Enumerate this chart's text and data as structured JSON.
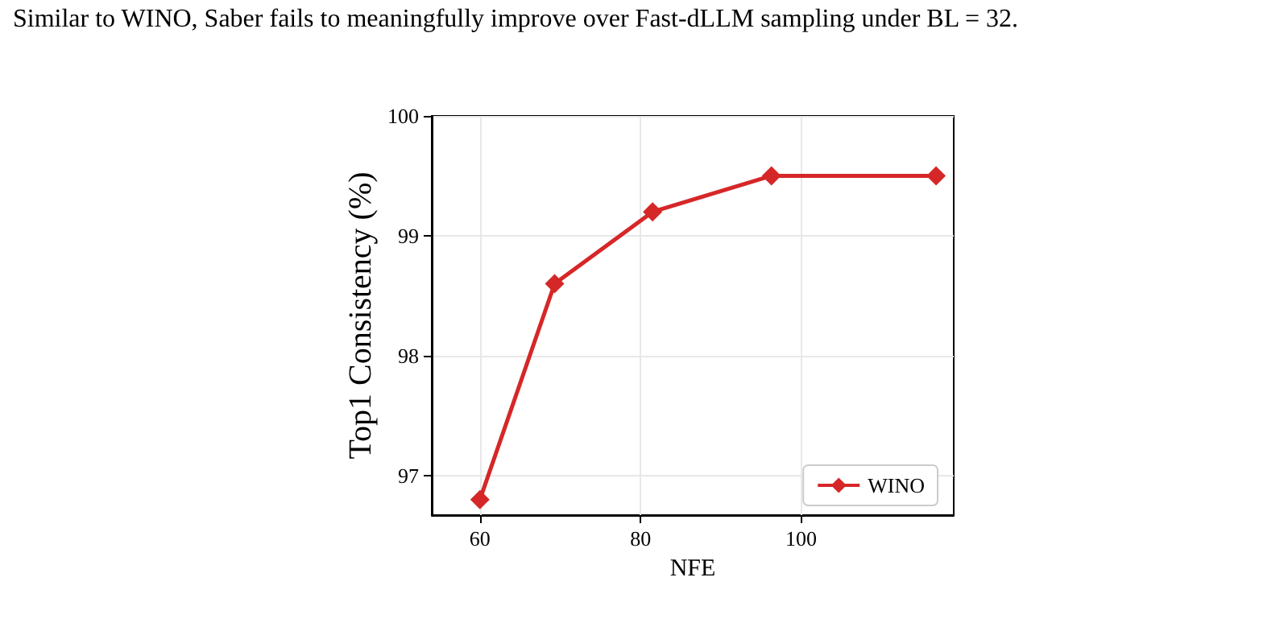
{
  "chart_data": {
    "type": "line",
    "xlabel": "NFE",
    "ylabel": "Top1 Consistency (%)",
    "annotations": [
      "Similar to WINO, Saber fails to meaningfully improve over Fast-dLLM sampling under BL = 32."
    ],
    "x": [
      60,
      69.3,
      81.5,
      96.3,
      116.8
    ],
    "series": [
      {
        "name": "WINO",
        "color": "#d62728",
        "values": [
          96.8,
          98.6,
          99.2,
          99.5,
          99.5
        ]
      }
    ],
    "xlim": [
      54,
      119
    ],
    "xticks": [
      60,
      80,
      100
    ],
    "ylim": [
      96.67,
      100
    ],
    "yticks": [
      97,
      98,
      99,
      100
    ],
    "grid": true,
    "legend": "bottom right",
    "marker": "diamond",
    "line_style": "solid"
  }
}
